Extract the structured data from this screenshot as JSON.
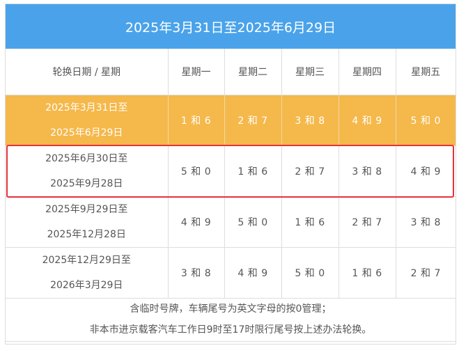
{
  "title": "2025年3月31日至2025年6月29日",
  "header": {
    "date_col": "轮换日期 / 星期",
    "days": [
      "星期一",
      "星期二",
      "星期三",
      "星期四",
      "星期五"
    ]
  },
  "rows": [
    {
      "range_start": "2025年3月31日至",
      "range_end": "2025年6月29日",
      "pairs": [
        "1 和 6",
        "2 和 7",
        "3 和 8",
        "4 和 9",
        "5 和 0"
      ]
    },
    {
      "range_start": "2025年6月30日至",
      "range_end": "2025年9月28日",
      "pairs": [
        "5 和 0",
        "1 和 6",
        "2 和 7",
        "3 和 8",
        "4 和 9"
      ]
    },
    {
      "range_start": "2025年9月29日至",
      "range_end": "2025年12月28日",
      "pairs": [
        "4 和 9",
        "5 和 0",
        "1 和 6",
        "2 和 7",
        "3 和 8"
      ]
    },
    {
      "range_start": "2025年12月29日至",
      "range_end": "2026年3月29日",
      "pairs": [
        "3 和 8",
        "4 和 9",
        "5 和 0",
        "1 和 6",
        "2 和 7"
      ]
    }
  ],
  "notes": [
    "含临时号牌，车辆尾号为英文字母的按0管理；",
    "非本市进京载客汽车工作日9时至17时限行尾号按上述办法轮换。"
  ],
  "colors": {
    "title_bg": "#4aa3ea",
    "current_row_bg": "#f5b84a",
    "selection_outline": "#e8313b"
  }
}
